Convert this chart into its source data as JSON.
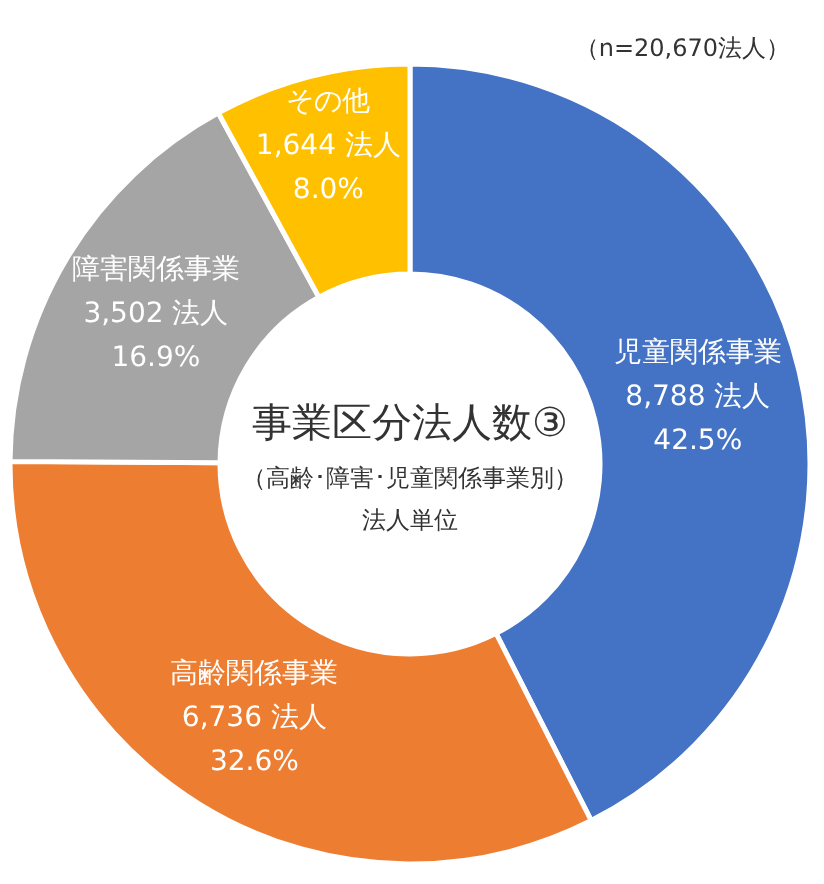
{
  "chart_data": {
    "type": "donut",
    "title": "事業区分法人数③",
    "subtitle": "（高齢･障害･児童関係事業別）",
    "annotations": [
      "（n=20,670法人）",
      "法人単位"
    ],
    "categories": [
      "児童関係事業",
      "高齢関係事業",
      "障害関係事業",
      "その他"
    ],
    "values": [
      8788,
      6736,
      3502,
      1644
    ],
    "colors": [
      "#4472c4",
      "#ed7d31",
      "#a5a5a5",
      "#ffc000"
    ],
    "value_labels": [
      "8,788 法人\n42.5%",
      "6,736 法人\n32.6%",
      "3,502 法人\n16.9%",
      "1,644 法人\n8.0%"
    ]
  }
}
